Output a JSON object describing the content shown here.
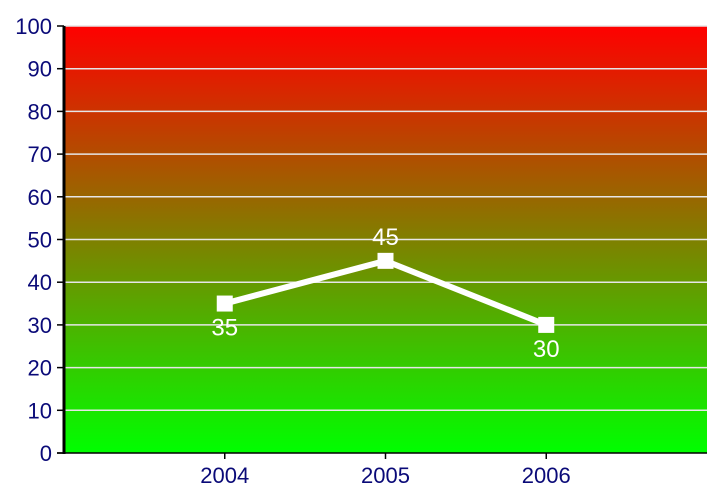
{
  "chart_data": {
    "type": "line",
    "title": "",
    "xlabel": "",
    "ylabel": "",
    "categories": [
      "2004",
      "2005",
      "2006"
    ],
    "series": [
      {
        "values": [
          35,
          45,
          30
        ]
      }
    ],
    "data_labels": [
      "35",
      "45",
      "30"
    ],
    "y_ticks": [
      "0",
      "10",
      "20",
      "30",
      "40",
      "50",
      "60",
      "70",
      "80",
      "90",
      "100"
    ],
    "ylim": [
      0,
      100
    ],
    "grid": true,
    "legend": "none",
    "colors": {
      "background_top": "#ff0000",
      "background_bottom": "#00ff00",
      "line": "#ffffff",
      "gridline": "#e6e6e6",
      "axis": "#000000",
      "tick_text": "#0a0a78"
    }
  }
}
